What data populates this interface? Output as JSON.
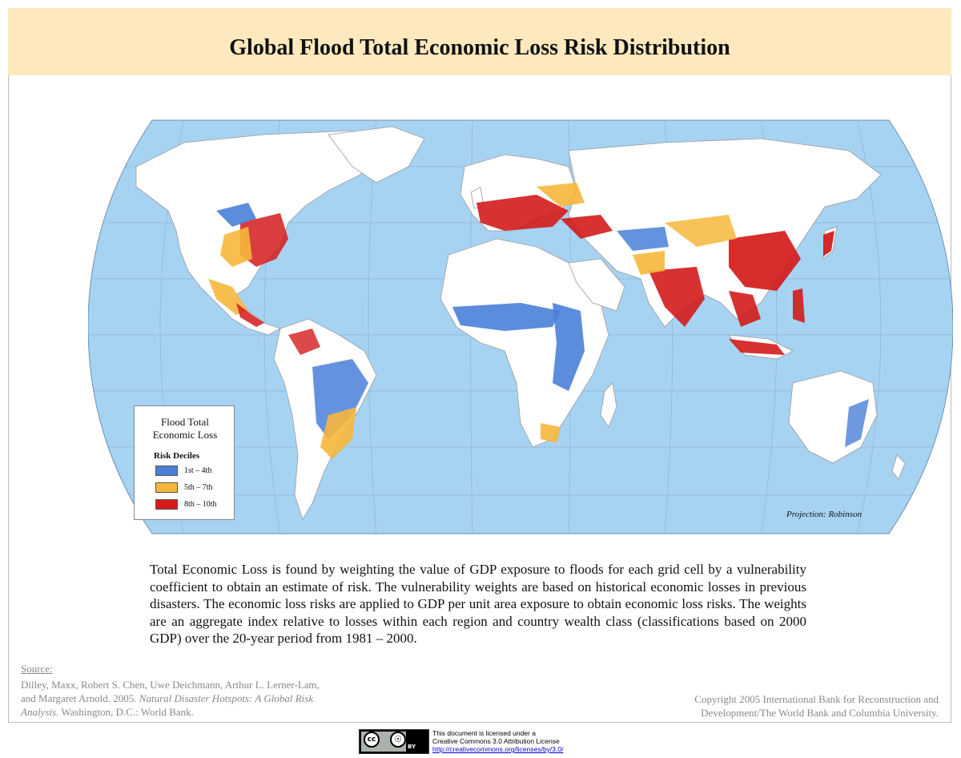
{
  "title": "Global Flood Total Economic Loss Risk Distribution",
  "legend": {
    "title_line1": "Flood Total",
    "title_line2": "Economic Loss",
    "subtitle": "Risk Deciles",
    "items": [
      {
        "label": "1st – 4th",
        "color": "#4a7fd8"
      },
      {
        "label": "5th – 7th",
        "color": "#f6b73c"
      },
      {
        "label": "8th – 10th",
        "color": "#d41b1b"
      }
    ]
  },
  "colors": {
    "ocean": "#a7d3f2",
    "land": "#ffffff",
    "title_band": "#fde9bd",
    "low": "#4a7fd8",
    "medium": "#f6b73c",
    "high": "#d41b1b"
  },
  "projection": "Projection: Robinson",
  "description": "Total Economic Loss is found by weighting the value of GDP exposure to floods for each grid cell by a vulnerability coefficient to obtain an estimate of risk. The vulnerability weights are based on historical economic losses in previous disasters. The economic loss risks are applied to GDP per unit area exposure to obtain economic loss risks. The weights are an aggregate index relative to losses within each region and country wealth class (classifications based on 2000 GDP) over the 20-year period from 1981 – 2000.",
  "source": {
    "label": "Source:",
    "text_plain": "Dilley, Maxx, Robert S. Chen, Uwe Deichmann, Arthur L. Lerner-Lam, and Margaret Arnold. 2005.",
    "text_italic": "Natural Disaster Hotspots: A Global Risk Analysis.",
    "text_end": "Washington, D.C.: World Bank."
  },
  "copyright": "Copyright 2005 International Bank for Reconstruction and Development/The World Bank and Columbia University.",
  "license": {
    "line1": "This document is licensed under a",
    "line2": "Creative Commons 3.0 Attribution License",
    "url": "http://creativecommons.org/licenses/by/3.0/",
    "badge_cc": "cc",
    "badge_by": "BY"
  }
}
